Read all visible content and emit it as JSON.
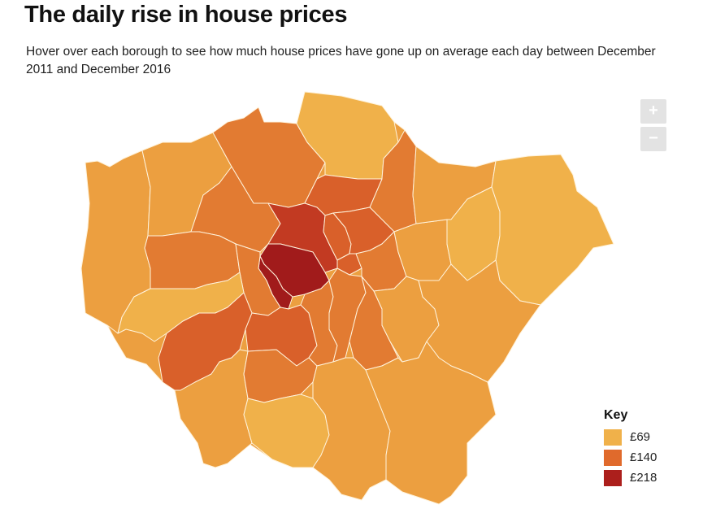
{
  "header": {
    "title": "The daily rise in house prices",
    "subtitle": "Hover over each borough to see how much house prices have gone up on average each day between December 2011 and December 2016"
  },
  "controls": {
    "zoom_in_label": "+",
    "zoom_out_label": "−"
  },
  "key": {
    "title": "Key",
    "items": [
      {
        "label": "£69",
        "color": "#f0b14a"
      },
      {
        "label": "£140",
        "color": "#e06a2c"
      },
      {
        "label": "£218",
        "color": "#ac1f1c"
      }
    ]
  },
  "palette": {
    "lightest": "#f0b14a",
    "light": "#ec9f40",
    "medium": "#e27b32",
    "darker": "#d9602a",
    "dark": "#c23a22",
    "darkest": "#a11b1b",
    "border": "#fff3dc"
  }
}
